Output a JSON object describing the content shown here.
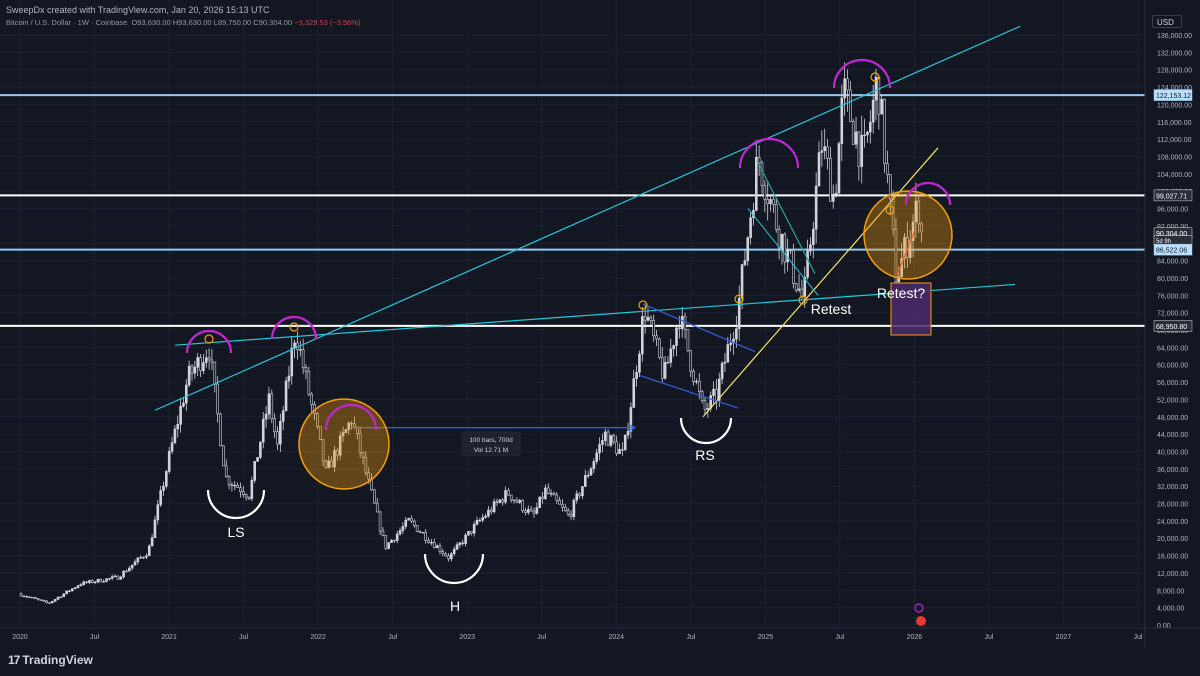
{
  "header": {
    "title": "SweepDx created with TradingView.com, Jan 20, 2026 15:13 UTC",
    "symbol": "Bitcoin / U.S. Dollar · 1W · Coinbase",
    "open": "O93,630.00",
    "high": "H93,630.00",
    "low": "L89,750.00",
    "close": "C90,304.00",
    "change": "−3,329.53 (−3.56%)"
  },
  "currency": "USD",
  "logo": "TradingView",
  "colors": {
    "background": "#131722",
    "candle": "#d1d4dc",
    "cyan_trend": "#26c6da",
    "white_level": "#ffffff",
    "light_blue_level": "#90caf9",
    "magenta_arc": "#c026d3",
    "orange_circle": "#f59e0b",
    "yellow_line": "#f5e663",
    "blue_channel": "#3b5bdb",
    "green_line": "#26a69a",
    "red_line": "#e53935",
    "purple_box": "#4b2a6b"
  },
  "chart_data": {
    "type": "candlestick",
    "symbol": "BTCUSD",
    "timeframe": "1W",
    "x_tick_labels": [
      "2020",
      "Jul",
      "2021",
      "Jul",
      "2022",
      "Jul",
      "2023",
      "Jul",
      "2024",
      "Jul",
      "2025",
      "Jul",
      "2026",
      "Jul",
      "2027",
      "Jul"
    ],
    "y_tick_labels": [
      "136,000.00",
      "132,000.00",
      "128,000.00",
      "124,000.00",
      "120,000.00",
      "116,000.00",
      "112,000.00",
      "108,000.00",
      "104,000.00",
      "100,000.00",
      "96,000.00",
      "92,000.00",
      "88,000.00",
      "84,000.00",
      "80,000.00",
      "76,000.00",
      "72,000.00",
      "68,000.00",
      "64,000.00",
      "60,000.00",
      "56,000.00",
      "52,000.00",
      "48,000.00",
      "44,000.00",
      "40,000.00",
      "36,000.00",
      "32,000.00",
      "28,000.00",
      "24,000.00",
      "20,000.00",
      "16,000.00",
      "12,000.00",
      "8,000.00",
      "4,000.00",
      "0.00"
    ],
    "ylim": [
      0,
      138000
    ],
    "price_labels": [
      {
        "text": "122,153.12",
        "value": 122153.12,
        "style": "light"
      },
      {
        "text": "99,027.71",
        "value": 99027.71,
        "style": "dark"
      },
      {
        "text": "90,304.00",
        "value": 90304,
        "style": "dark"
      },
      {
        "text": "5d 9h",
        "value": 88700,
        "style": "dark-small"
      },
      {
        "text": "86,522.06",
        "value": 86522.06,
        "style": "light"
      },
      {
        "text": "68,950.80",
        "value": 68950.8,
        "style": "dark"
      }
    ],
    "horizontal_levels": [
      122153.12,
      99027.71,
      86522.06,
      68950.8
    ],
    "price_path": [
      [
        "2020-01-01",
        7200
      ],
      [
        "2020-03-15",
        5000
      ],
      [
        "2020-06-01",
        9500
      ],
      [
        "2020-09-01",
        11000
      ],
      [
        "2020-11-15",
        17000
      ],
      [
        "2021-01-08",
        40000
      ],
      [
        "2021-02-20",
        57000
      ],
      [
        "2021-04-12",
        64000
      ],
      [
        "2021-05-23",
        34000
      ],
      [
        "2021-07-20",
        30000
      ],
      [
        "2021-09-06",
        52000
      ],
      [
        "2021-09-27",
        41000
      ],
      [
        "2021-11-10",
        68000
      ],
      [
        "2022-01-24",
        35000
      ],
      [
        "2022-03-28",
        47500
      ],
      [
        "2022-06-18",
        18000
      ],
      [
        "2022-08-15",
        24000
      ],
      [
        "2022-11-21",
        15500
      ],
      [
        "2023-01-30",
        23500
      ],
      [
        "2023-04-14",
        30500
      ],
      [
        "2023-06-15",
        25000
      ],
      [
        "2023-07-15",
        31000
      ],
      [
        "2023-09-11",
        25000
      ],
      [
        "2023-12-08",
        44000
      ],
      [
        "2024-01-22",
        39000
      ],
      [
        "2024-03-14",
        73000
      ],
      [
        "2024-05-01",
        57000
      ],
      [
        "2024-06-07",
        71500
      ],
      [
        "2024-08-05",
        49000
      ],
      [
        "2024-09-06",
        53000
      ],
      [
        "2024-10-29",
        73000
      ],
      [
        "2024-12-17",
        108000
      ],
      [
        "2025-02-02",
        92000
      ],
      [
        "2025-04-07",
        74500
      ],
      [
        "2025-05-22",
        111000
      ],
      [
        "2025-06-22",
        98000
      ],
      [
        "2025-07-14",
        123000
      ],
      [
        "2025-09-01",
        107000
      ],
      [
        "2025-10-06",
        126000
      ],
      [
        "2025-11-21",
        80000
      ],
      [
        "2026-01-14",
        97000
      ],
      [
        "2026-01-20",
        90304
      ]
    ],
    "annotations": [
      {
        "text": "LS"
      },
      {
        "text": "H"
      },
      {
        "text": "RS"
      },
      {
        "text": "Retest"
      },
      {
        "text": "Retest?"
      }
    ],
    "measure": {
      "line1": "100 bars, 700d",
      "line2": "Vol 12.71 M"
    }
  }
}
